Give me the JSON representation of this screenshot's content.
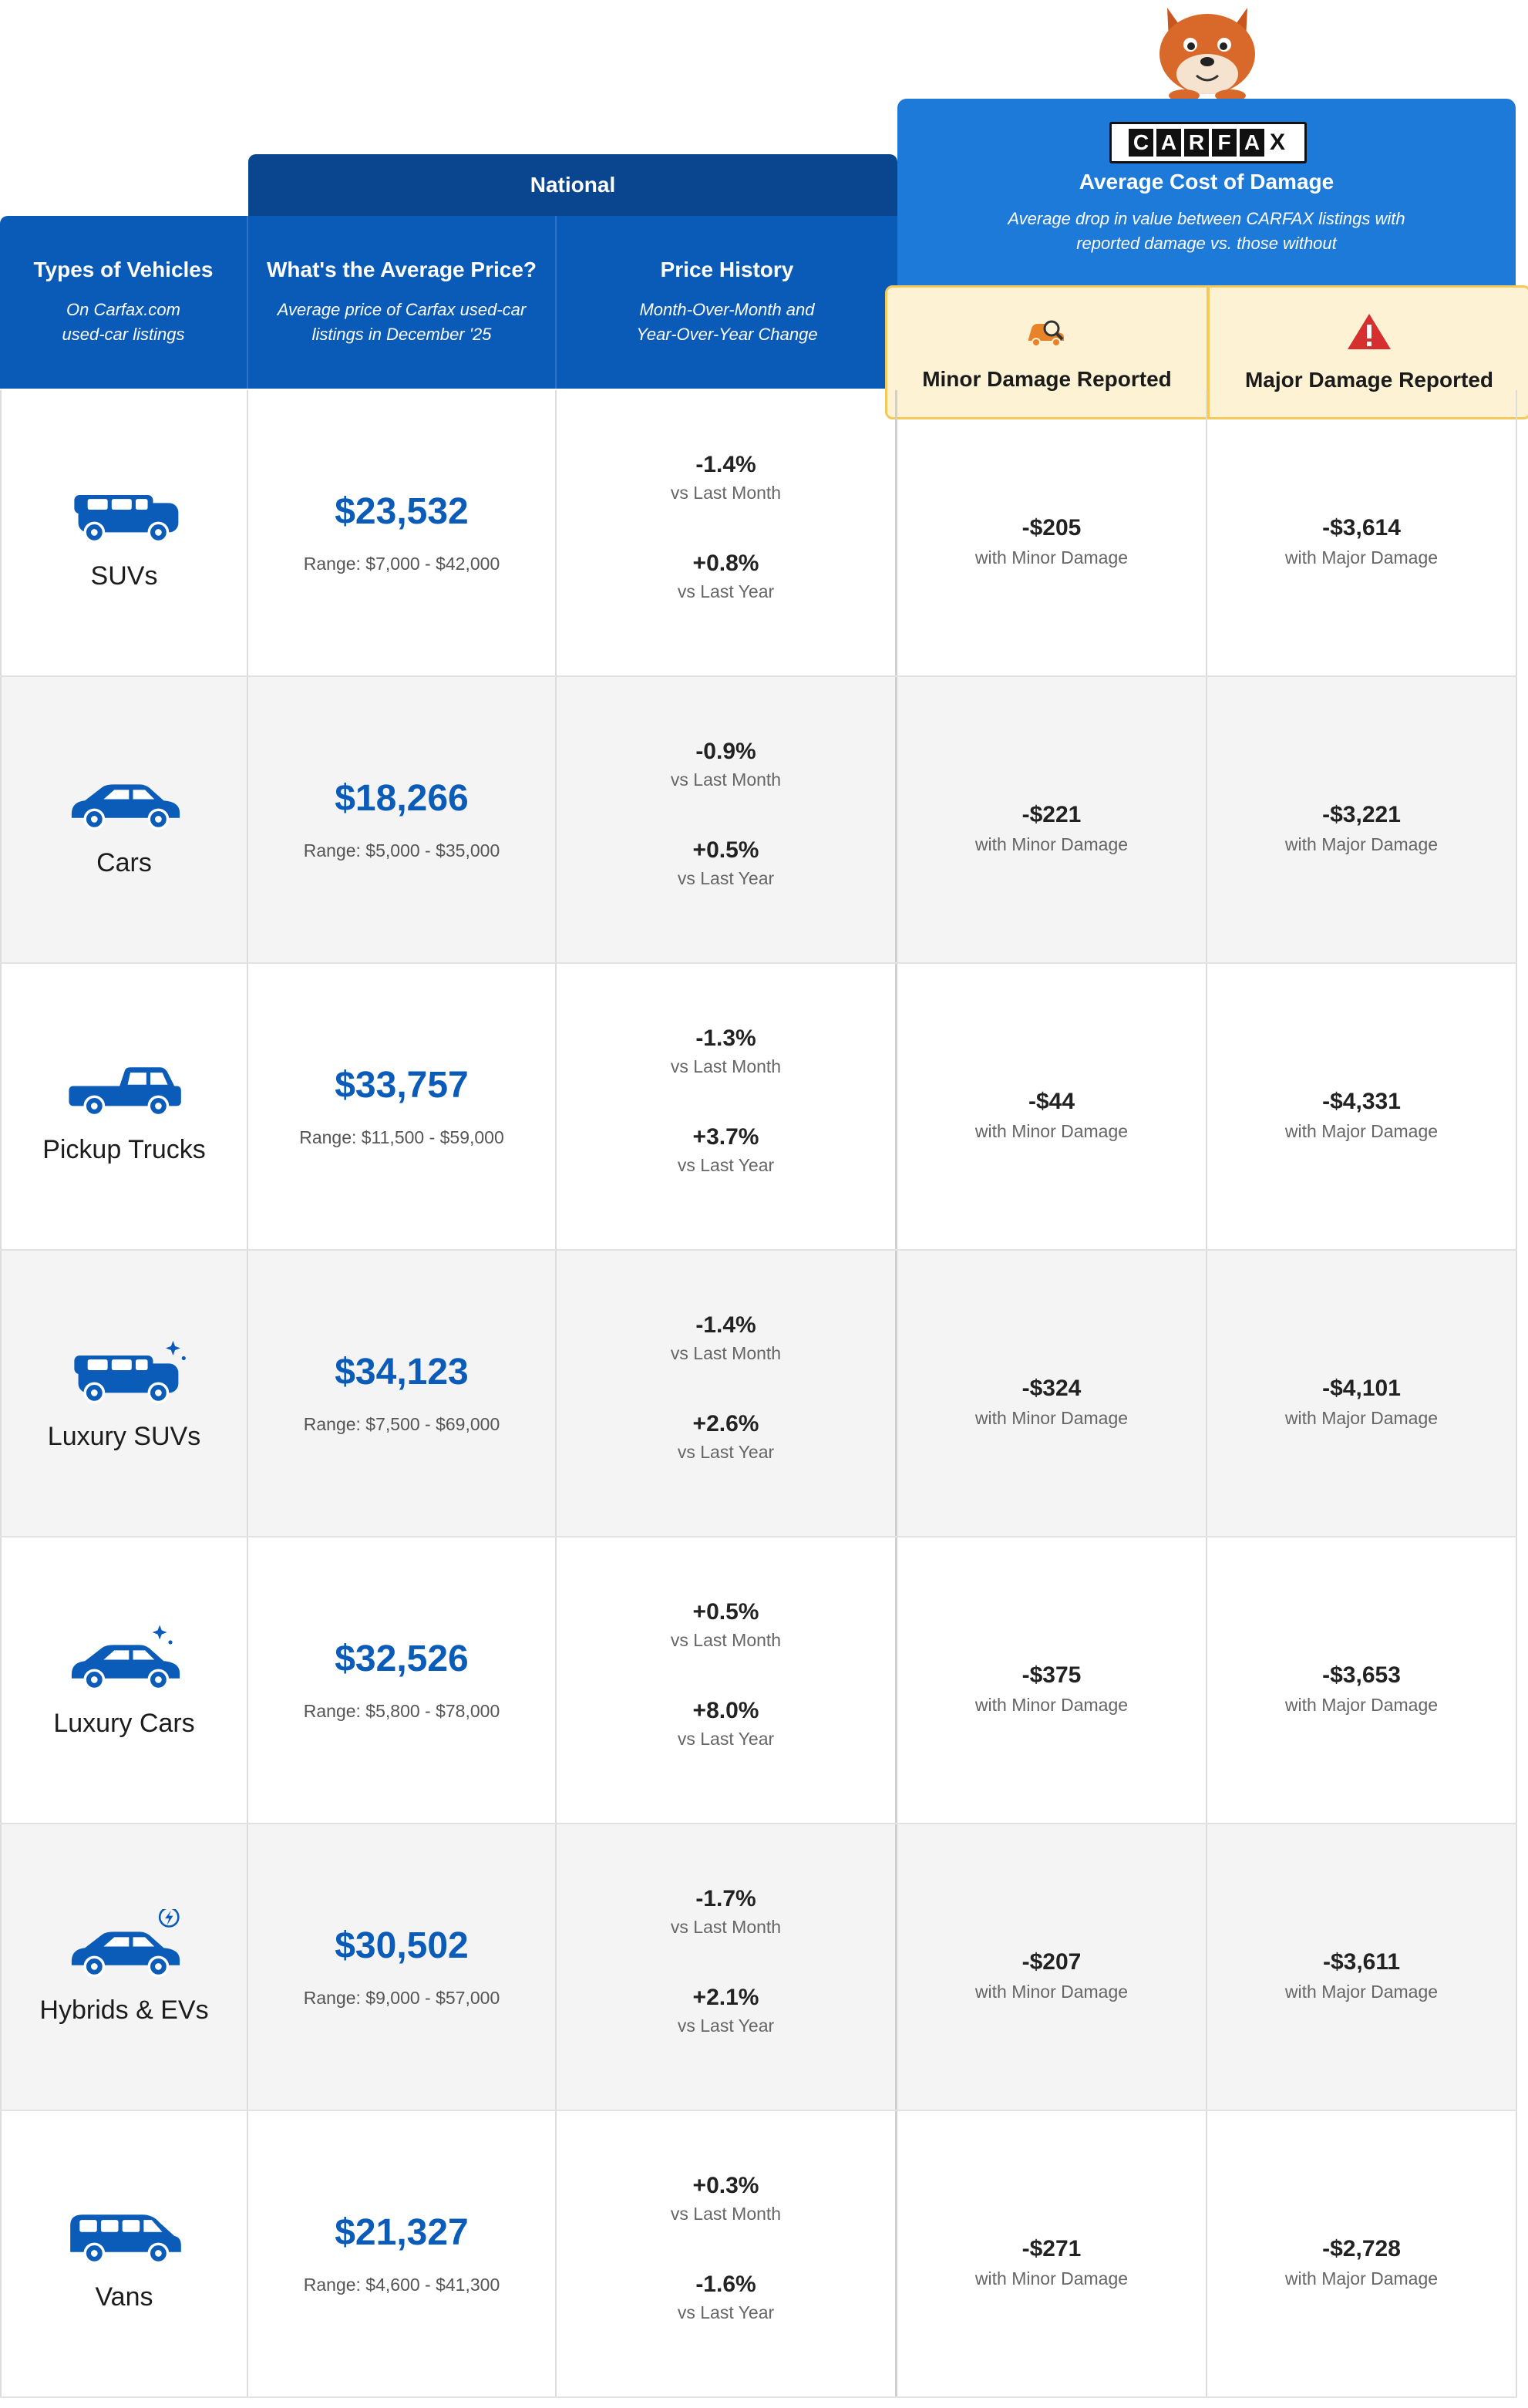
{
  "header": {
    "national": "National",
    "col_types": {
      "title": "Types of Vehicles",
      "subtitle": "On Carfax.com\nused-car listings"
    },
    "col_price": {
      "title": "What's the Average Price?",
      "subtitle": "Average price of Carfax used-car\nlistings in December '25"
    },
    "col_history": {
      "title": "Price History",
      "subtitle": "Month-Over-Month and\nYear-Over-Year Change"
    }
  },
  "damage_header": {
    "logo_letters": [
      "C",
      "A",
      "R",
      "F",
      "A",
      "X"
    ],
    "title": "Average Cost of Damage",
    "subtitle": "Average drop in value between CARFAX listings with reported damage vs. those without",
    "minor_label": "Minor Damage Reported",
    "major_label": "Major Damage Reported"
  },
  "colors": {
    "price_blue": "#0b5cb8",
    "header_blue": "#0a5ab8",
    "national_blue": "#0a468f",
    "damage_blue": "#1e7ad8",
    "damage_label_bg": "#fdf3d4",
    "minor_icon": "#e8832a",
    "major_icon": "#d62f2f"
  },
  "labels": {
    "mom": "vs Last Month",
    "yoy": "vs Last Year",
    "minor": "with Minor Damage",
    "major": "with Major Damage"
  },
  "chart_data": {
    "type": "table",
    "columns": [
      "Types of Vehicles",
      "What's the Average Price?",
      "Range",
      "Month-Over-Month",
      "Year-Over-Year",
      "Minor Damage Reported",
      "Major Damage Reported"
    ],
    "rows": [
      {
        "name": "SUVs",
        "icon": "suv-icon",
        "price": "$23,532",
        "range": "Range: $7,000 - $42,000",
        "mom": "-1.4%",
        "yoy": "+0.8%",
        "minor": "-$205",
        "major": "-$3,614"
      },
      {
        "name": "Cars",
        "icon": "sedan-icon",
        "price": "$18,266",
        "range": "Range: $5,000 - $35,000",
        "mom": "-0.9%",
        "yoy": "+0.5%",
        "minor": "-$221",
        "major": "-$3,221"
      },
      {
        "name": "Pickup Trucks",
        "icon": "pickup-truck-icon",
        "price": "$33,757",
        "range": "Range: $11,500 - $59,000",
        "mom": "-1.3%",
        "yoy": "+3.7%",
        "minor": "-$44",
        "major": "-$4,331"
      },
      {
        "name": "Luxury SUVs",
        "icon": "luxury-suv-icon",
        "price": "$34,123",
        "range": "Range: $7,500 - $69,000",
        "mom": "-1.4%",
        "yoy": "+2.6%",
        "minor": "-$324",
        "major": "-$4,101"
      },
      {
        "name": "Luxury Cars",
        "icon": "luxury-car-icon",
        "price": "$32,526",
        "range": "Range: $5,800 - $78,000",
        "mom": "+0.5%",
        "yoy": "+8.0%",
        "minor": "-$375",
        "major": "-$3,653"
      },
      {
        "name": "Hybrids & EVs",
        "icon": "electric-car-icon",
        "price": "$30,502",
        "range": "Range: $9,000 - $57,000",
        "mom": "-1.7%",
        "yoy": "+2.1%",
        "minor": "-$207",
        "major": "-$3,611"
      },
      {
        "name": "Vans",
        "icon": "van-icon",
        "price": "$21,327",
        "range": "Range: $4,600 - $41,300",
        "mom": "+0.3%",
        "yoy": "-1.6%",
        "minor": "-$271",
        "major": "-$2,728"
      }
    ]
  }
}
